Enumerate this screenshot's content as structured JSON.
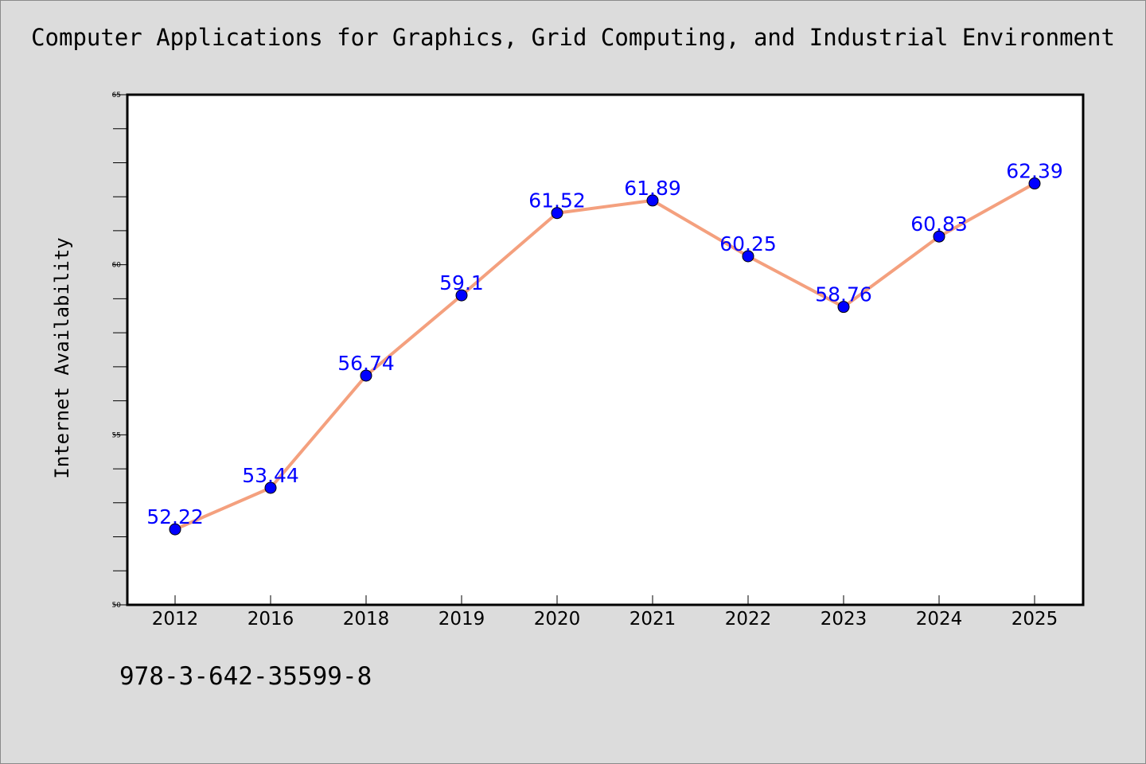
{
  "chart_data": {
    "type": "line",
    "title": "Computer Applications for Graphics, Grid Computing, and Industrial Environment",
    "xlabel": "",
    "ylabel": "Internet Availability",
    "categories": [
      "2012",
      "2016",
      "2018",
      "2019",
      "2020",
      "2021",
      "2022",
      "2023",
      "2024",
      "2025"
    ],
    "series": [
      {
        "values": [
          52.22,
          53.44,
          56.74,
          59.1,
          61.52,
          61.89,
          60.25,
          58.76,
          60.83,
          62.39
        ],
        "labels": [
          "52.22",
          "53.44",
          "56.74",
          "59.1",
          "61.52",
          "61.89",
          "60.25",
          "58.76",
          "60.83",
          "62.39"
        ],
        "line_color": "#f4a07e",
        "marker_color": "#0000ff"
      }
    ],
    "ylim": [
      50,
      65
    ],
    "yticks": [
      "50",
      "55",
      "60",
      "65"
    ],
    "grid": false,
    "legend": "none"
  },
  "footer": {
    "code": "978-3-642-35599-8"
  },
  "colors": {
    "background": "#dcdcdc",
    "plot_background": "#ffffff"
  }
}
